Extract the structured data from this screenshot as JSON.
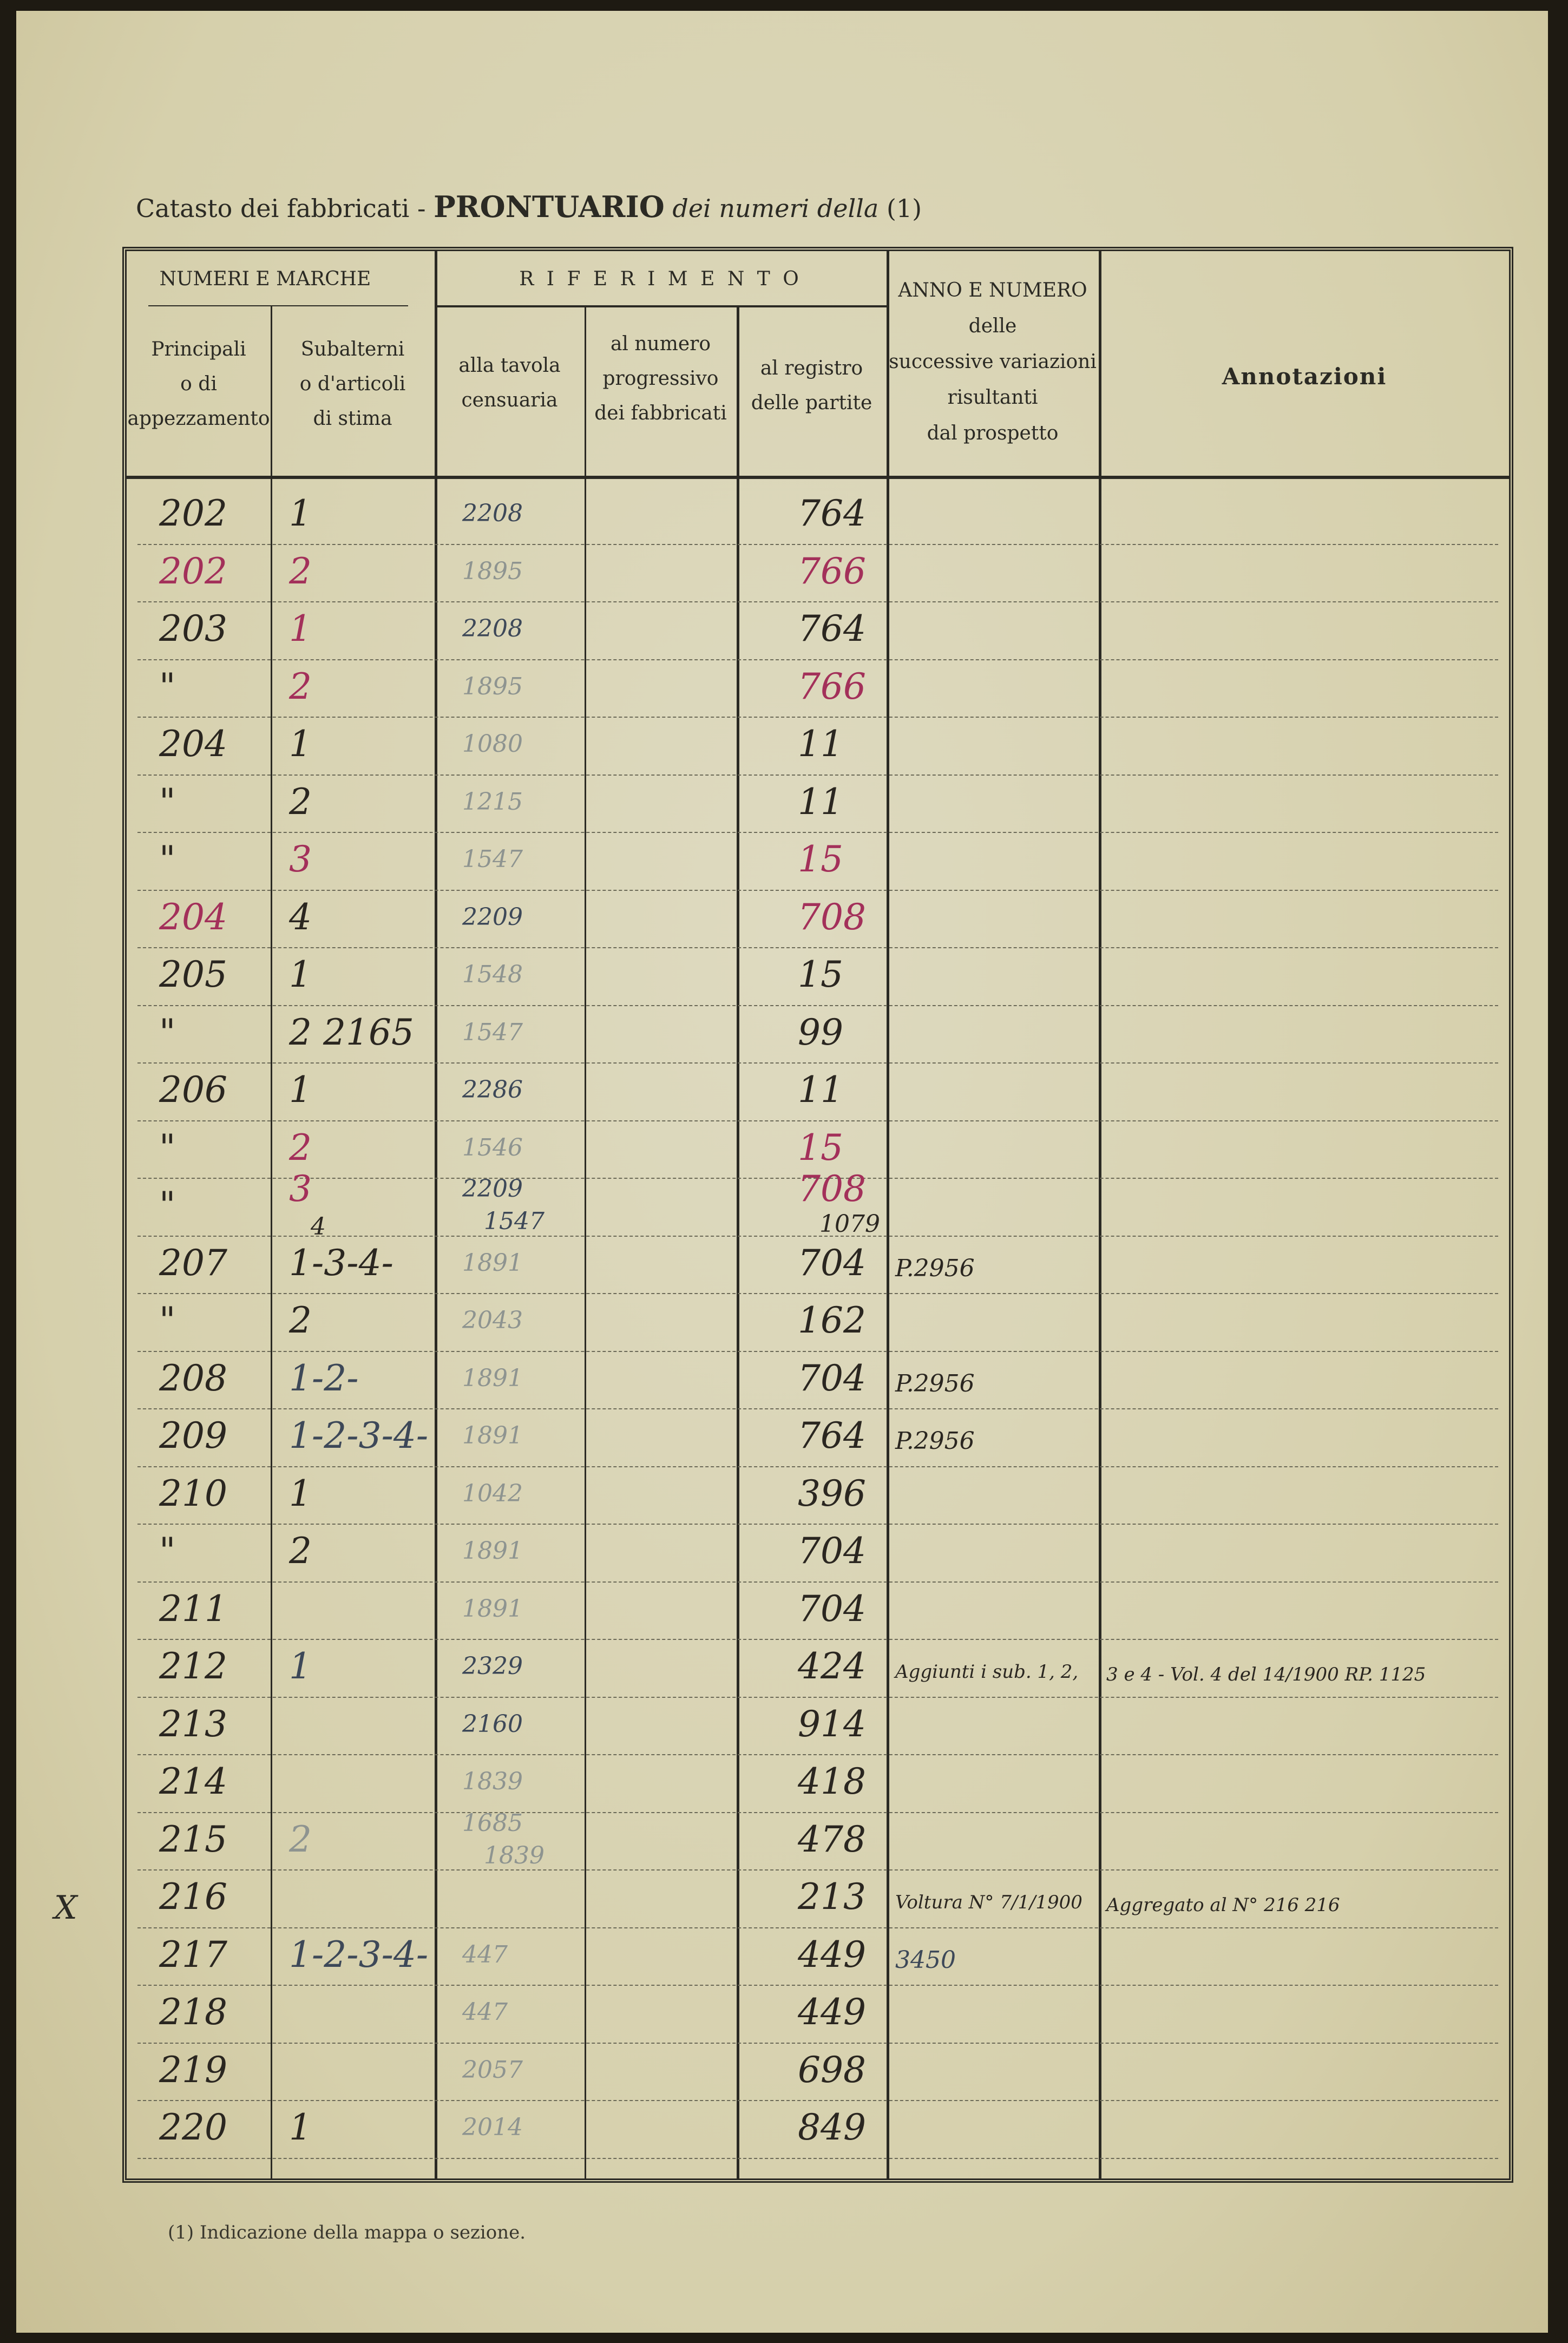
{
  "title": {
    "prefix": "Catasto dei fabbricati -",
    "bold": "PRONTUARIO",
    "italic": "dei numeri della",
    "note_ref": "(1)"
  },
  "headers": {
    "group_numeri": "NUMERI E MARCHE",
    "principali": [
      "Principali",
      "o di",
      "appezzamento"
    ],
    "subalterni": [
      "Subalterni",
      "o d'articoli",
      "di stima"
    ],
    "group_riferimento": "R I F E R I M E N T O",
    "tavola": [
      "alla tavola",
      "censuaria"
    ],
    "progressivo": [
      "al numero",
      "progressivo",
      "dei fabbricati"
    ],
    "registro": [
      "al registro",
      "delle partite"
    ],
    "variazioni": [
      "ANNO E NUMERO",
      "delle",
      "successive variazioni",
      "risultanti",
      "dal prospetto"
    ],
    "annotazioni": "Annotazioni"
  },
  "ink_colors": {
    "black": "#2a2620",
    "red": "#a3305a",
    "faded": "#8e9490",
    "blue": "#3d4858"
  },
  "rows": [
    {
      "p": "202",
      "s": "1",
      "t": "2208",
      "r": "764",
      "pc": "black",
      "sc": "black",
      "tc": "blue",
      "rc": "black"
    },
    {
      "p": "202",
      "s": "2",
      "t": "1895",
      "r": "766",
      "pc": "red",
      "sc": "red",
      "tc": "faded",
      "rc": "red"
    },
    {
      "p": "203",
      "s": "1",
      "t": "2208",
      "r": "764",
      "pc": "black",
      "sc": "red",
      "tc": "blue",
      "rc": "black"
    },
    {
      "p": "\"",
      "s": "2",
      "t": "1895",
      "r": "766",
      "pc": "black",
      "sc": "red",
      "tc": "faded",
      "rc": "red"
    },
    {
      "p": "204",
      "s": "1",
      "t": "1080",
      "r": "11",
      "pc": "black",
      "sc": "black",
      "tc": "faded",
      "rc": "black"
    },
    {
      "p": "\"",
      "s": "2",
      "t": "1215",
      "r": "11",
      "pc": "black",
      "sc": "black",
      "tc": "faded",
      "rc": "black"
    },
    {
      "p": "\"",
      "s": "3",
      "t": "1547",
      "r": "15",
      "pc": "black",
      "sc": "red",
      "tc": "faded",
      "rc": "red"
    },
    {
      "p": "204",
      "s": "4",
      "t": "2209",
      "r": "708",
      "pc": "red",
      "sc": "black",
      "tc": "blue",
      "rc": "red"
    },
    {
      "p": "205",
      "s": "1",
      "t": "1548",
      "r": "15",
      "pc": "black",
      "sc": "black",
      "tc": "faded",
      "rc": "black"
    },
    {
      "p": "\"",
      "s": "2 2165",
      "t": "1547",
      "r": "99",
      "pc": "black",
      "sc": "black",
      "tc": "faded",
      "rc": "black"
    },
    {
      "p": "206",
      "s": "1",
      "t": "2286",
      "r": "11",
      "pc": "black",
      "sc": "black",
      "tc": "blue",
      "rc": "black"
    },
    {
      "p": "\"",
      "s": "2",
      "t": "1546",
      "r": "15",
      "pc": "black",
      "sc": "red",
      "tc": "faded",
      "rc": "red"
    },
    {
      "p": "\"",
      "s": "3",
      "s2": "4",
      "t": "2209",
      "t2": "1547",
      "r": "708",
      "r2": "1079",
      "pc": "black",
      "sc": "red",
      "tc": "blue",
      "rc": "red"
    },
    {
      "p": "207",
      "s": "1-3-4-",
      "t": "1891",
      "r": "704",
      "v": "P.2956",
      "pc": "black",
      "sc": "black",
      "tc": "faded",
      "rc": "black"
    },
    {
      "p": "\"",
      "s": "2",
      "t": "2043",
      "r": "162",
      "pc": "black",
      "sc": "black",
      "tc": "faded",
      "rc": "black"
    },
    {
      "p": "208",
      "s": "1-2-",
      "t": "1891",
      "r": "704",
      "v": "P.2956",
      "pc": "black",
      "sc": "blue",
      "tc": "faded",
      "rc": "black"
    },
    {
      "p": "209",
      "s": "1-2-3-4-",
      "t": "1891",
      "r": "764",
      "v": "P.2956",
      "pc": "black",
      "sc": "blue",
      "tc": "faded",
      "rc": "black"
    },
    {
      "p": "210",
      "s": "1",
      "t": "1042",
      "r": "396",
      "pc": "black",
      "sc": "black",
      "tc": "faded",
      "rc": "black"
    },
    {
      "p": "\"",
      "s": "2",
      "t": "1891",
      "r": "704",
      "pc": "black",
      "sc": "black",
      "tc": "faded",
      "rc": "black"
    },
    {
      "p": "211",
      "s": "",
      "t": "1891",
      "r": "704",
      "pc": "black",
      "sc": "black",
      "tc": "faded",
      "rc": "black"
    },
    {
      "p": "212",
      "s": "1",
      "t": "2329",
      "r": "424",
      "v": "Aggiunti i sub. 1, 2,",
      "a": "3 e 4 - Vol. 4 del 14/1900  RP. 1125",
      "pc": "black",
      "sc": "blue",
      "tc": "blue",
      "rc": "black"
    },
    {
      "p": "213",
      "s": "",
      "t": "2160",
      "r": "914",
      "pc": "black",
      "sc": "black",
      "tc": "blue",
      "rc": "black"
    },
    {
      "p": "214",
      "s": "",
      "t": "1839",
      "r": "418",
      "pc": "black",
      "sc": "black",
      "tc": "faded",
      "rc": "black"
    },
    {
      "p": "215",
      "s": "2",
      "t": "1685",
      "t2": "1839",
      "r": "478",
      "pc": "black",
      "sc": "faded",
      "tc": "faded",
      "rc": "black"
    },
    {
      "p": "216",
      "s": "",
      "t": "",
      "r": "213",
      "v": "Voltura N° 7/1/1900",
      "a": "Aggregato al N° 216  216",
      "pc": "black",
      "sc": "black",
      "tc": "faded",
      "rc": "black"
    },
    {
      "p": "217",
      "s": "1-2-3-4-",
      "t": "447",
      "r": "449",
      "v": "3450",
      "pc": "black",
      "sc": "blue",
      "tc": "faded",
      "rc": "black"
    },
    {
      "p": "218",
      "s": "",
      "t": "447",
      "r": "449",
      "pc": "black",
      "sc": "black",
      "tc": "faded",
      "rc": "black"
    },
    {
      "p": "219",
      "s": "",
      "t": "2057",
      "r": "698",
      "pc": "black",
      "sc": "black",
      "tc": "faded",
      "rc": "black"
    },
    {
      "p": "220",
      "s": "1",
      "t": "2014",
      "r": "849",
      "pc": "black",
      "sc": "black",
      "tc": "faded",
      "rc": "black"
    }
  ],
  "margin_mark": "X",
  "footnote": "(1) Indicazione della mappa o sezione."
}
